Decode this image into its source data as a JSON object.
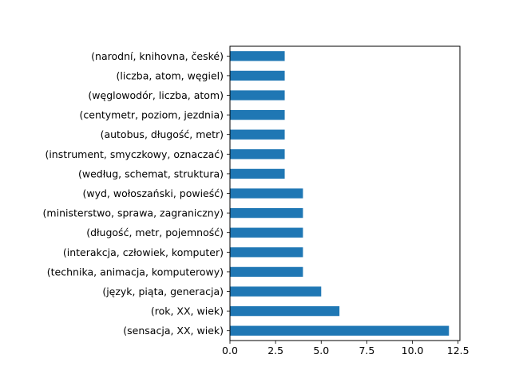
{
  "chart_data": {
    "type": "bar",
    "orientation": "horizontal",
    "title": "",
    "xlabel": "",
    "ylabel": "",
    "categories": [
      "(narodní, knihovna, české)",
      "(liczba, atom, węgiel)",
      "(węglowodór, liczba, atom)",
      "(centymetr, poziom, jezdnia)",
      "(autobus, długość, metr)",
      "(instrument, smyczkowy, oznaczać)",
      "(według, schemat, struktura)",
      "(wyd, wołoszański, powieść)",
      "(ministerstwo, sprawa, zagraniczny)",
      "(długość, metr, pojemność)",
      "(interakcja, człowiek, komputer)",
      "(technika, animacja, komputerowy)",
      "(język, piąta, generacja)",
      "(rok, XX, wiek)",
      "(sensacja, XX, wiek)"
    ],
    "values": [
      3,
      3,
      3,
      3,
      3,
      3,
      3,
      4,
      4,
      4,
      4,
      4,
      5,
      6,
      12
    ],
    "xlim": [
      0,
      12.6
    ],
    "xticks": [
      0,
      2.5,
      5,
      7.5,
      10,
      12.5
    ],
    "xtick_labels": [
      "0.0",
      "2.5",
      "5.0",
      "7.5",
      "10.0",
      "12.5"
    ],
    "grid": false,
    "legend": false,
    "bar_color": "#1f77b4"
  }
}
